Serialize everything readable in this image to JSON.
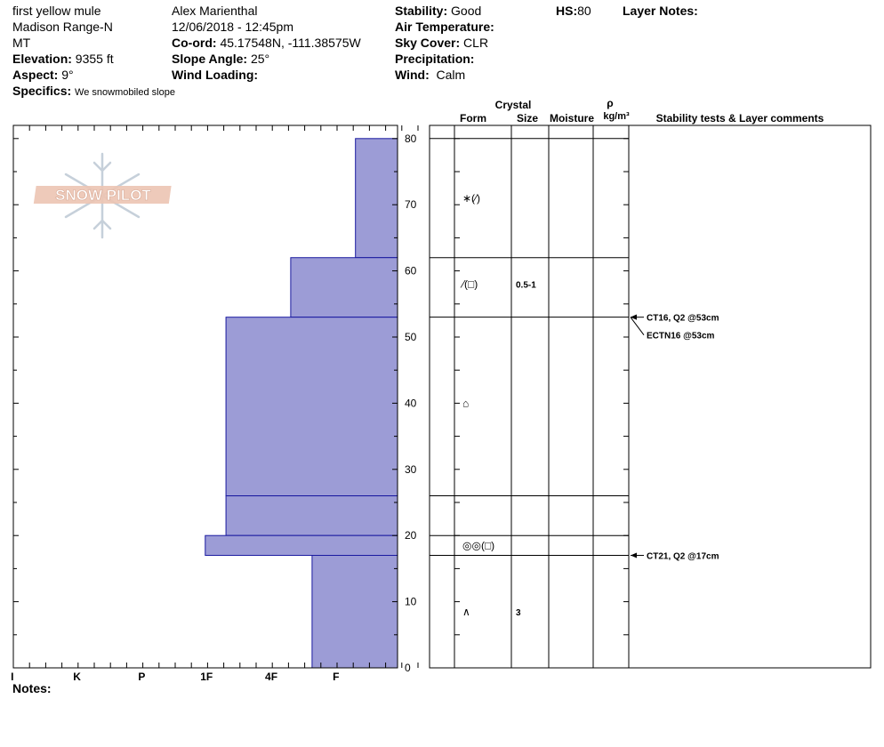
{
  "header": {
    "site": "first yellow mule",
    "range": "Madison Range-N",
    "state": "MT",
    "elevation_label": "Elevation:",
    "elevation_value": "9355 ft",
    "aspect_label": "Aspect:",
    "aspect_value": "9°",
    "specifics_label": "Specifics:",
    "specifics_value": "We snowmobiled slope",
    "observer": "Alex Marienthal",
    "datetime": "12/06/2018 - 12:45pm",
    "coord_label": "Co-ord:",
    "coord_value": "45.17548N, -111.38575W",
    "slope_label": "Slope Angle:",
    "slope_value": "25°",
    "wind_loading_label": "Wind Loading:",
    "stability_label": "Stability:",
    "stability_value": "Good",
    "air_temp_label": "Air Temperature:",
    "sky_label": "Sky Cover:",
    "sky_value": "CLR",
    "precip_label": "Precipitation:",
    "wind_label": "Wind:",
    "wind_value": "Calm",
    "hs_label": "HS:",
    "hs_value": "80",
    "layer_notes_label": "Layer Notes:"
  },
  "logo_text": "SNOW PILOT",
  "notes_label": "Notes:",
  "columns": {
    "crystal": "Crystal",
    "form": "Form",
    "size": "Size",
    "moisture": "Moisture",
    "rho": "ρ",
    "density_unit": "kg/m³",
    "stability": "Stability tests & Layer comments"
  },
  "colors": {
    "hardness_fill": "#9c9cd6",
    "hardness_edge": "#1a1aa0"
  },
  "chart_data": {
    "type": "bar",
    "y_axis": {
      "range": [
        0,
        80
      ],
      "ticks": [
        0,
        10,
        20,
        30,
        40,
        50,
        60,
        70,
        80
      ]
    },
    "hardness_scale": [
      "I",
      "K",
      "P",
      "1F",
      "4F",
      "F"
    ],
    "layers": [
      {
        "bottom": 62,
        "top": 80,
        "hardness": 0.65
      },
      {
        "bottom": 53,
        "top": 62,
        "hardness": 1.65
      },
      {
        "bottom": 26,
        "top": 53,
        "hardness": 2.65
      },
      {
        "bottom": 20,
        "top": 26,
        "hardness": 2.65
      },
      {
        "bottom": 17,
        "top": 20,
        "hardness": 2.97
      },
      {
        "bottom": 0,
        "top": 17,
        "hardness": 1.32
      }
    ],
    "boundaries": [
      80,
      62,
      53,
      26,
      20,
      17
    ],
    "crystals": [
      {
        "height": 71,
        "form": "∗(⁄)",
        "size": ""
      },
      {
        "height": 58,
        "form": "⁄(□)",
        "size": "0.5-1"
      },
      {
        "height": 40,
        "form": "⌂",
        "size": ""
      },
      {
        "height": 18.5,
        "form": "◎◎(□)",
        "size": ""
      },
      {
        "height": 8.5,
        "form": "∧",
        "size": "3"
      }
    ],
    "tests": [
      {
        "height": 53,
        "label": "CT16, Q2 @53cm",
        "offset": 0
      },
      {
        "height": 53,
        "label": "ECTN16 @53cm",
        "offset": 20
      },
      {
        "height": 17,
        "label": "CT21, Q2 @17cm",
        "offset": 0
      }
    ]
  }
}
